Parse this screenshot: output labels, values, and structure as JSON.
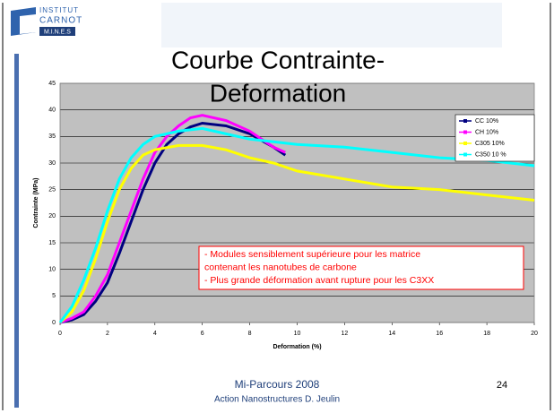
{
  "slide": {
    "logo": [
      "INSTITUT",
      "CARNOT",
      "M.I.N.E.S"
    ],
    "title": [
      "Courbe Contrainte-",
      "Deformation"
    ],
    "footer": [
      "Mi-Parcours 2008",
      "Action Nanostructures   D. Jeulin"
    ],
    "page_number": "24"
  },
  "chart_data": {
    "type": "line",
    "xlabel": "Deformation (%)",
    "ylabel": "Contrainte (MPa)",
    "xlim": [
      0,
      20
    ],
    "xticks": [
      0,
      2,
      4,
      6,
      8,
      10,
      12,
      14,
      16,
      18,
      20
    ],
    "ylim": [
      0,
      45
    ],
    "yticks": [
      0,
      5,
      10,
      15,
      20,
      25,
      30,
      35,
      40,
      45
    ],
    "grid": true,
    "legend": "upper right",
    "annotation": [
      "- Modules sensiblement supérieure pour les matrice",
      "contenant les nanotubes de carbone",
      "- Plus grande déformation avant rupture pour les C3XX"
    ],
    "series": [
      {
        "name": "CC 10%",
        "color": "#000080",
        "x": [
          0,
          0.5,
          1,
          1.5,
          2,
          2.5,
          3,
          3.5,
          4,
          4.5,
          5,
          5.5,
          6,
          7,
          8,
          9,
          9.5
        ],
        "values": [
          0,
          0.5,
          1.5,
          4,
          7.5,
          13,
          19,
          25,
          30,
          33.5,
          35.5,
          36.8,
          37.5,
          37,
          35.5,
          33,
          31.5
        ]
      },
      {
        "name": "CH 10%",
        "color": "#ff00ff",
        "x": [
          0,
          0.5,
          1,
          1.5,
          2,
          2.5,
          3,
          3.5,
          4,
          4.5,
          5,
          5.5,
          6,
          7,
          8,
          9,
          9.5
        ],
        "values": [
          0,
          0.8,
          2,
          5,
          9,
          15,
          21,
          27,
          32,
          35,
          37,
          38.5,
          39,
          38,
          36,
          33,
          32
        ]
      },
      {
        "name": "C305 10%",
        "color": "#ffff00",
        "x": [
          0,
          0.5,
          1,
          1.5,
          2,
          2.5,
          3,
          3.5,
          4,
          5,
          6,
          7,
          8,
          9,
          10,
          12,
          14,
          16,
          18,
          20
        ],
        "values": [
          0,
          2,
          6,
          12,
          19,
          25,
          29,
          31.5,
          32.5,
          33.3,
          33.3,
          32.5,
          31,
          30,
          28.5,
          27,
          25.5,
          25,
          24,
          23
        ]
      },
      {
        "name": "C350 10 %",
        "color": "#00ffff",
        "x": [
          0,
          0.5,
          1,
          1.5,
          2,
          2.5,
          3,
          3.5,
          4,
          5,
          6,
          7,
          8,
          10,
          12,
          14,
          16,
          18,
          20
        ],
        "values": [
          0,
          3,
          8,
          14,
          21,
          27,
          31,
          33.5,
          35,
          36,
          36.5,
          35.5,
          34.5,
          33.5,
          33,
          32,
          31,
          30.5,
          29.5
        ]
      }
    ]
  }
}
